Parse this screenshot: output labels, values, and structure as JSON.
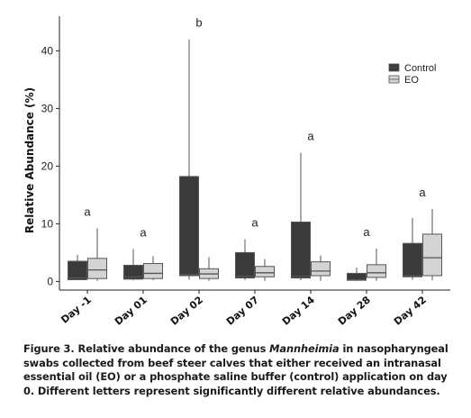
{
  "caption": {
    "prefix": "Figure 3. Relative abundance of the genus ",
    "genus": "Mannheimia",
    "suffix": " in nasopharyngeal swabs collected from beef steer calves that either received an intranasal essential oil (EO) or a phosphate saline buffer (control) application on day 0. Different letters represent significantly different relative abundances."
  },
  "colors": {
    "control": "#3a3a3a",
    "eo": "#d4d4d4",
    "outline": "#555555"
  },
  "chart_data": {
    "type": "box",
    "ylabel": "Relative Abundance (%)",
    "xlabel": "",
    "ylim": [
      -1.5,
      46
    ],
    "yticks": [
      0,
      10,
      20,
      30,
      40
    ],
    "categories": [
      "Day -1",
      "Day 01",
      "Day 02",
      "Day 07",
      "Day 14",
      "Day 28",
      "Day 42"
    ],
    "significance_letters": [
      "a",
      "a",
      "b",
      "a",
      "a",
      "a",
      "a"
    ],
    "legend": {
      "position": "top-right",
      "entries": [
        "Control",
        "EO"
      ]
    },
    "series": [
      {
        "name": "Control",
        "boxes": [
          {
            "min": 0.2,
            "q1": 0.3,
            "median": 0.6,
            "q3": 3.5,
            "max": 4.6
          },
          {
            "min": 0.2,
            "q1": 0.4,
            "median": 0.8,
            "q3": 2.8,
            "max": 5.6
          },
          {
            "min": 0.3,
            "q1": 1.0,
            "median": 1.2,
            "q3": 18.2,
            "max": 42.0
          },
          {
            "min": 0.2,
            "q1": 0.6,
            "median": 0.9,
            "q3": 5.0,
            "max": 7.3
          },
          {
            "min": 0.2,
            "q1": 0.6,
            "median": 0.9,
            "q3": 10.3,
            "max": 22.3
          },
          {
            "min": 0.1,
            "q1": 0.2,
            "median": 0.3,
            "q3": 1.4,
            "max": 2.4
          },
          {
            "min": 0.3,
            "q1": 0.8,
            "median": 1.0,
            "q3": 6.6,
            "max": 11.0
          }
        ]
      },
      {
        "name": "EO",
        "boxes": [
          {
            "min": 0.1,
            "q1": 0.5,
            "median": 2.0,
            "q3": 4.0,
            "max": 9.2
          },
          {
            "min": 0.2,
            "q1": 0.5,
            "median": 1.4,
            "q3": 3.1,
            "max": 4.4
          },
          {
            "min": 0.1,
            "q1": 0.5,
            "median": 1.3,
            "q3": 2.2,
            "max": 4.2
          },
          {
            "min": 0.1,
            "q1": 0.8,
            "median": 1.5,
            "q3": 2.6,
            "max": 3.9
          },
          {
            "min": 0.1,
            "q1": 1.0,
            "median": 1.8,
            "q3": 3.4,
            "max": 4.5
          },
          {
            "min": 0.1,
            "q1": 0.7,
            "median": 1.5,
            "q3": 2.9,
            "max": 5.7
          },
          {
            "min": 0.2,
            "q1": 1.0,
            "median": 4.1,
            "q3": 8.2,
            "max": 12.6
          }
        ]
      }
    ]
  }
}
